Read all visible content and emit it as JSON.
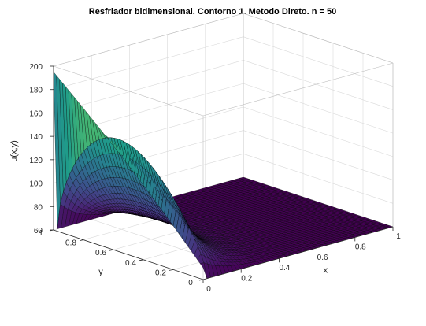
{
  "chart_data": {
    "type": "surface",
    "title": "Resfriador bidimensional. Contorno 1. Metodo Direto. n = 50",
    "xlabel": "x",
    "ylabel": "y",
    "zlabel": "u(x,y)",
    "xlim": [
      0,
      1
    ],
    "ylim": [
      0,
      1
    ],
    "zlim": [
      60,
      200
    ],
    "xticks": [
      "0",
      "0.2",
      "0.4",
      "0.6",
      "0.8",
      "1"
    ],
    "yticks": [
      "0",
      "0.2",
      "0.4",
      "0.6",
      "0.8",
      "1"
    ],
    "zticks": [
      "60",
      "80",
      "100",
      "120",
      "140",
      "160",
      "180",
      "200"
    ],
    "grid": true,
    "colormap": "viridis",
    "grid_size": 50,
    "boundary": {
      "left_edge_x0": 200,
      "other_edges": 60,
      "at_x0_y0": 70,
      "at_x0_y1": 195
    }
  },
  "colors": {
    "viridis": [
      "#440154",
      "#482777",
      "#3f4a8a",
      "#31678e",
      "#26838f",
      "#1f9d8a",
      "#6cce5a",
      "#b6de2b",
      "#fee825"
    ],
    "axis": "#262626",
    "grid": "#d9d9d9",
    "edge": "#000000"
  }
}
